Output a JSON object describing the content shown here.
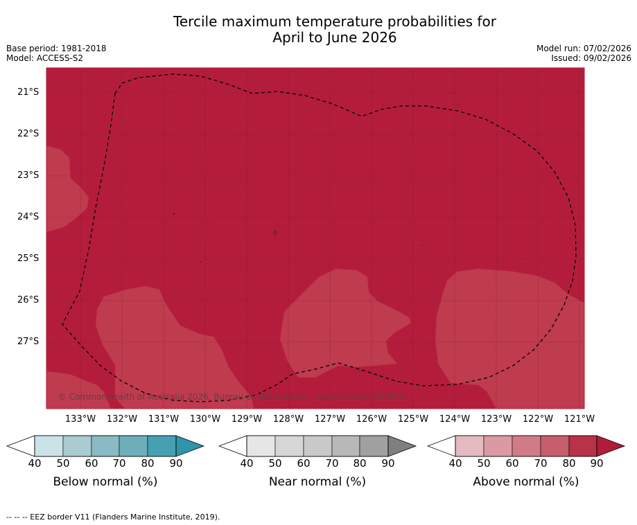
{
  "title_line1": "Tercile maximum temperature probabilities for",
  "title_line2": "April to June 2026",
  "meta_left": [
    "Base period: 1981-2018",
    "Model: ACCESS-S2"
  ],
  "meta_right": [
    "Model run: 07/02/2026",
    "Issued: 09/02/2026"
  ],
  "lat_labels": [
    "21°S",
    "22°S",
    "23°S",
    "24°S",
    "25°S",
    "26°S",
    "27°S"
  ],
  "lon_labels": [
    "133°W",
    "132°W",
    "131°W",
    "130°W",
    "129°W",
    "128°W",
    "127°W",
    "126°W",
    "125°W",
    "124°W",
    "123°W",
    "122°W",
    "121°W"
  ],
  "credit": "© Commonwealth of Australia 2026, Bureau of Meteorology, supported by COSPPac",
  "colorbars": [
    {
      "title": "Below normal (%)",
      "ticks": [
        "40",
        "50",
        "60",
        "70",
        "80",
        "90"
      ],
      "colors": [
        "#cbe3e8",
        "#a9cbd1",
        "#8bbac4",
        "#6daebb",
        "#47a0b2"
      ],
      "tip_color": "#2f95ab"
    },
    {
      "title": "Near normal (%)",
      "ticks": [
        "40",
        "50",
        "60",
        "70",
        "80",
        "90"
      ],
      "colors": [
        "#e6e6e6",
        "#d7d7d7",
        "#c9c9c9",
        "#b8b8b8",
        "#a0a0a0"
      ],
      "tip_color": "#7f7f7f"
    },
    {
      "title": "Above normal (%)",
      "ticks": [
        "40",
        "50",
        "60",
        "70",
        "80",
        "90"
      ],
      "colors": [
        "#e4b9c1",
        "#d99aa4",
        "#d17b86",
        "#c65e6b",
        "#b83248"
      ],
      "tip_color": "#b01c3a"
    }
  ],
  "colors": {
    "category_80": "#b31d3b",
    "category_70": "#bf3b4e"
  },
  "footnote": "--  --  -- EEZ border V11 (Flanders Marine Institute, 2019)."
}
